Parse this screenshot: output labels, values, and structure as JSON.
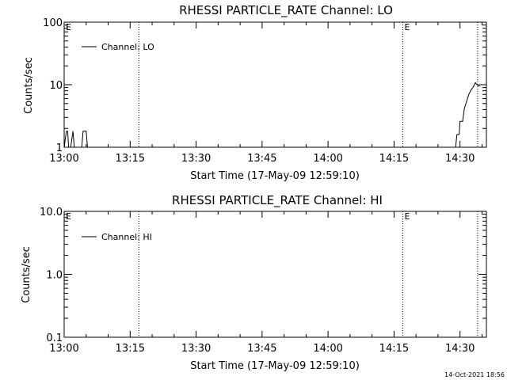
{
  "footer_date": "14-Oct-2021 18:56",
  "chart_data": [
    {
      "type": "line",
      "title": "RHESSI PARTICLE_RATE Channel: LO",
      "xlabel": "Start Time (17-May-09 12:59:10)",
      "ylabel": "Counts/sec",
      "yscale": "log",
      "xlim": [
        "13:00",
        "14:36"
      ],
      "ylim": [
        1,
        100
      ],
      "x_ticks": [
        "13:00",
        "13:15",
        "13:30",
        "13:45",
        "14:00",
        "14:15",
        "14:30"
      ],
      "y_ticks": [
        {
          "value": 1,
          "label": "1"
        },
        {
          "value": 10,
          "label": "10"
        },
        {
          "value": 100,
          "label": "100"
        }
      ],
      "legend": {
        "label": "Channel: LO",
        "position": "top-left"
      },
      "eclipse_markers": [
        {
          "time": "13:00",
          "label": "E"
        },
        {
          "time": "14:17",
          "label": "E"
        }
      ],
      "dotted_lines": [
        "13:17",
        "14:17",
        "14:34"
      ],
      "series": [
        {
          "values": [
            [
              "13:00",
              0.8
            ],
            [
              "13:00.5",
              1.8
            ],
            [
              "13:00.8",
              1.8
            ],
            [
              "13:01",
              0.8
            ],
            [
              "13:01.5",
              0.8
            ],
            [
              "13:02",
              1.8
            ],
            [
              "13:02.3",
              0.8
            ],
            [
              "13:04",
              0.8
            ],
            [
              "13:04.3",
              1.8
            ],
            [
              "13:05",
              1.8
            ],
            [
              "13:05.3",
              0.8
            ],
            [
              "14:29",
              0.8
            ],
            [
              "14:29.3",
              1.6
            ],
            [
              "14:29.8",
              1.6
            ],
            [
              "14:30",
              2.6
            ],
            [
              "14:30.6",
              2.6
            ],
            [
              "14:31",
              4.2
            ],
            [
              "14:31.5",
              5.4
            ],
            [
              "14:32",
              7.0
            ],
            [
              "14:32.5",
              8.2
            ],
            [
              "14:33",
              9.2
            ],
            [
              "14:33.5",
              10.8
            ],
            [
              "14:34",
              9.8
            ],
            [
              "14:34.5",
              9.4
            ]
          ]
        }
      ]
    },
    {
      "type": "line",
      "title": "RHESSI PARTICLE_RATE Channel: HI",
      "xlabel": "Start Time (17-May-09 12:59:10)",
      "ylabel": "Counts/sec",
      "yscale": "log",
      "xlim": [
        "13:00",
        "14:36"
      ],
      "ylim": [
        0.1,
        10
      ],
      "x_ticks": [
        "13:00",
        "13:15",
        "13:30",
        "13:45",
        "14:00",
        "14:15",
        "14:30"
      ],
      "y_ticks": [
        {
          "value": 0.1,
          "label": "0.1"
        },
        {
          "value": 1,
          "label": "1.0"
        },
        {
          "value": 10,
          "label": "10.0"
        }
      ],
      "legend": {
        "label": "Channel: HI",
        "position": "top-left"
      },
      "eclipse_markers": [
        {
          "time": "13:00",
          "label": "E"
        },
        {
          "time": "14:17",
          "label": "E"
        }
      ],
      "dotted_lines": [
        "13:17",
        "14:17",
        "14:34"
      ],
      "series": [
        {
          "values": []
        }
      ]
    }
  ]
}
